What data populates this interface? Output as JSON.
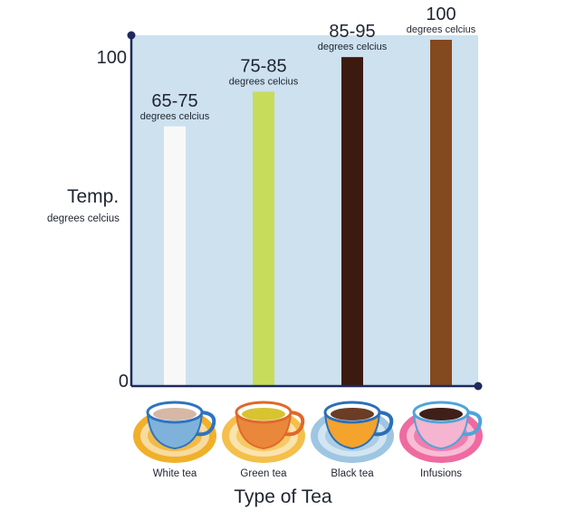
{
  "chart_data": {
    "type": "bar",
    "categories": [
      "White tea",
      "Green tea",
      "Black tea",
      "Infusions"
    ],
    "values": [
      75,
      85,
      95,
      100
    ],
    "value_labels": [
      "65-75",
      "75-85",
      "85-95",
      "100"
    ],
    "value_unit_label": "degrees celcius",
    "ylabel": "Temp.",
    "ylabel_sub": "degrees celcius",
    "xlabel": "Type of Tea",
    "yticks": [
      "0",
      "100"
    ],
    "ylim": [
      0,
      100
    ],
    "grid": false,
    "colors": [
      "#f8f8f8",
      "#c8dc5c",
      "#3d1a10",
      "#84491e"
    ],
    "plot_background": "#cde1ef",
    "axis_color": "#1f2a5c"
  },
  "cups": [
    {
      "category": "White tea",
      "icon": "white-tea-cup-icon",
      "saucer": "#f0b02a",
      "rim": "#2e73c0",
      "cup": "#7eb2da",
      "tea": "#d7b8a6"
    },
    {
      "category": "Green tea",
      "icon": "green-tea-cup-icon",
      "saucer": "#f4c04b",
      "rim": "#e0682a",
      "cup": "#e9873a",
      "tea": "#d7c430"
    },
    {
      "category": "Black tea",
      "icon": "black-tea-cup-icon",
      "saucer": "#9ec6e2",
      "rim": "#2b6fb7",
      "cup": "#f4a32c",
      "tea": "#6b3c26"
    },
    {
      "category": "Infusions",
      "icon": "infusion-cup-icon",
      "saucer": "#ef6aa0",
      "rim": "#4fa4db",
      "cup": "#f5b4cf",
      "tea": "#3f1f18"
    }
  ]
}
